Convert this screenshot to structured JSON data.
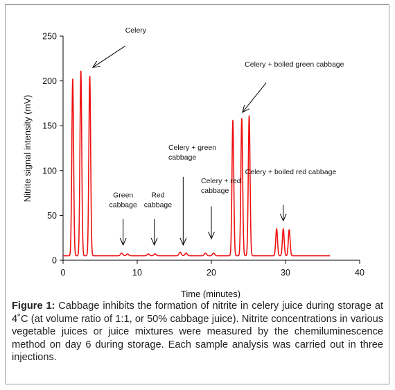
{
  "chart_data": {
    "type": "line",
    "xlabel": "Time (minutes)",
    "ylabel": "Nitrite signal intensity (mV)",
    "xlim": [
      0,
      40
    ],
    "ylim": [
      0,
      250
    ],
    "xticks": [
      0,
      10,
      20,
      30,
      40
    ],
    "yticks": [
      0,
      50,
      100,
      150,
      200,
      250
    ],
    "grid": false,
    "series_color": "#ee1111",
    "baseline_mV": 5,
    "x_end": 36,
    "peaks": [
      {
        "x": 1.3,
        "y": 202,
        "w": 0.12
      },
      {
        "x": 2.4,
        "y": 211,
        "w": 0.12
      },
      {
        "x": 3.6,
        "y": 205,
        "w": 0.12
      },
      {
        "x": 7.9,
        "y": 8,
        "w": 0.15
      },
      {
        "x": 8.7,
        "y": 7,
        "w": 0.15
      },
      {
        "x": 11.5,
        "y": 7,
        "w": 0.15
      },
      {
        "x": 12.4,
        "y": 7,
        "w": 0.15
      },
      {
        "x": 15.8,
        "y": 9,
        "w": 0.15
      },
      {
        "x": 16.6,
        "y": 8,
        "w": 0.15
      },
      {
        "x": 19.2,
        "y": 8,
        "w": 0.15
      },
      {
        "x": 20.3,
        "y": 8,
        "w": 0.15
      },
      {
        "x": 22.9,
        "y": 156,
        "w": 0.12
      },
      {
        "x": 24.1,
        "y": 158,
        "w": 0.12
      },
      {
        "x": 25.1,
        "y": 161,
        "w": 0.12
      },
      {
        "x": 28.8,
        "y": 35,
        "w": 0.12
      },
      {
        "x": 29.7,
        "y": 35,
        "w": 0.12
      },
      {
        "x": 30.5,
        "y": 34,
        "w": 0.12
      }
    ],
    "annotations": [
      {
        "lines": [
          "Celery"
        ],
        "text_x": 9.8,
        "text_y": 254,
        "arrow_from": [
          8.4,
          239
        ],
        "arrow_to": [
          4.0,
          215
        ]
      },
      {
        "lines": [
          "Celery + boiled green cabbage"
        ],
        "text_x": 31.2,
        "text_y": 216,
        "arrow_from": [
          27.4,
          198
        ],
        "arrow_to": [
          24.2,
          165
        ]
      },
      {
        "lines": [
          "Green",
          "cabbage"
        ],
        "text_x": 8.1,
        "text_y": 70,
        "arrow_from": [
          8.1,
          46
        ],
        "arrow_to": [
          8.1,
          17
        ]
      },
      {
        "lines": [
          "Red",
          "cabbage"
        ],
        "text_x": 12.8,
        "text_y": 70,
        "arrow_from": [
          12.3,
          46
        ],
        "arrow_to": [
          12.3,
          17
        ]
      },
      {
        "lines": [
          "Celery + green",
          "cabbage"
        ],
        "text_x": 14.2,
        "text_y": 123,
        "text_align": "start",
        "arrow_from": [
          16.2,
          93
        ],
        "arrow_to": [
          16.2,
          17
        ]
      },
      {
        "lines": [
          "Celery + red",
          "cabbage"
        ],
        "text_x": 18.6,
        "text_y": 86,
        "text_align": "start",
        "arrow_from": [
          20.0,
          60
        ],
        "arrow_to": [
          20.0,
          24
        ]
      },
      {
        "lines": [
          "Celery + boiled red cabbage"
        ],
        "text_x": 30.7,
        "text_y": 96,
        "arrow_from": [
          29.7,
          62
        ],
        "arrow_to": [
          29.7,
          44
        ]
      }
    ]
  },
  "caption": {
    "label": "Figure 1:",
    "text": "Cabbage inhibits the formation of nitrite in celery juice during storage at 4˚C (at volume ratio of 1:1, or 50% cabbage juice). Nitrite concentrations in various vegetable juices or juice mixtures were measured by the chemiluminescence method on day 6 during storage. Each sample analysis was carried out in three injections."
  }
}
